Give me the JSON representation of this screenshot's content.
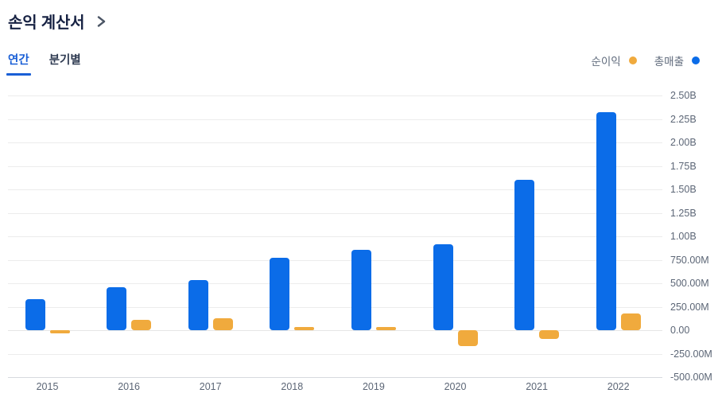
{
  "header": {
    "title": "손익 계산서",
    "chevron_icon": "chevron-right"
  },
  "tabs": {
    "annual_label": "연간",
    "quarterly_label": "분기별",
    "active": "연간"
  },
  "legend": [
    {
      "label": "순이익",
      "color": "#f0aa3d",
      "series_key": "net-income"
    },
    {
      "label": "총매출",
      "color": "#0b6ce8",
      "series_key": "total-revenue"
    }
  ],
  "colors": {
    "revenue_blue": "#0b6ce8",
    "net_income_orange": "#f0aa3d",
    "active_tab_blue": "#1a5fd6",
    "title_navy": "#172243",
    "axis_text_gray": "#5c6676",
    "gridline_gray": "#ececec"
  },
  "chart_data": {
    "type": "bar",
    "title": "손익 계산서 (연간)",
    "categories": [
      "2015",
      "2016",
      "2017",
      "2018",
      "2019",
      "2020",
      "2021",
      "2022"
    ],
    "series": [
      {
        "name": "총매출",
        "key": "total-revenue",
        "color": "#0b6ce8",
        "values_millions": [
          330,
          455,
          535,
          770,
          860,
          915,
          1600,
          2320
        ]
      },
      {
        "name": "순이익",
        "key": "net-income",
        "color": "#f0aa3d",
        "values_millions": [
          -30,
          110,
          130,
          30,
          30,
          -170,
          -95,
          180
        ]
      }
    ],
    "ylim_millions": [
      -500,
      2500
    ],
    "ytick_step_millions": 250,
    "ytick_labels": [
      "2.50B",
      "2.25B",
      "2.00B",
      "1.75B",
      "1.50B",
      "1.25B",
      "1.00B",
      "750.00M",
      "500.00M",
      "250.00M",
      "0.00",
      "-250.00M",
      "-500.00M"
    ],
    "grid": true,
    "legend_position": "top-right"
  }
}
